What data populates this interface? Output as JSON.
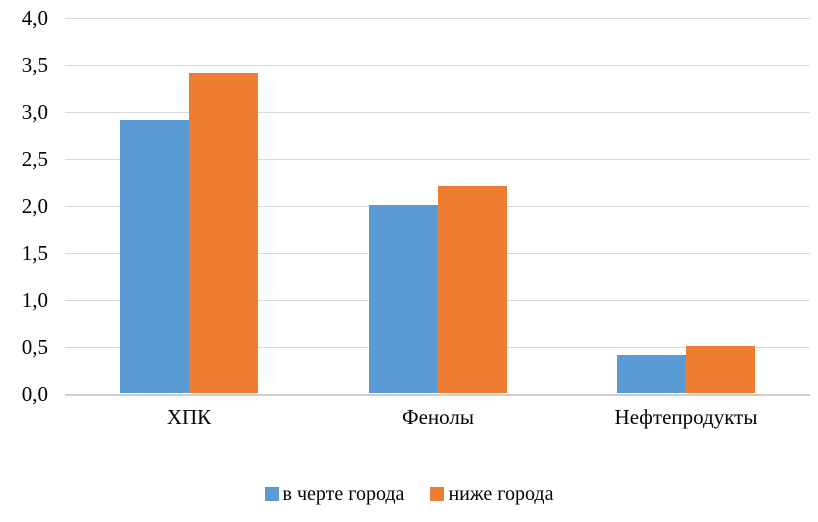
{
  "chart_data": {
    "type": "bar",
    "title": "",
    "xlabel": "",
    "ylabel": "",
    "categories": [
      "ХПК",
      "Фенолы",
      "Нефтепродукты"
    ],
    "series": [
      {
        "name": "в черте города",
        "color": "#5B9BD5",
        "values": [
          2.9,
          2.0,
          0.4
        ]
      },
      {
        "name": "ниже города",
        "color": "#ED7D31",
        "values": [
          3.4,
          2.2,
          0.5
        ]
      }
    ],
    "ylim": [
      0.0,
      4.0
    ],
    "ytick_step": 0.5,
    "ytick_labels": [
      "0,0",
      "0,5",
      "1,0",
      "1,5",
      "2,0",
      "2,5",
      "3,0",
      "3,5",
      "4,0"
    ],
    "grid": true,
    "legend_position": "bottom-center",
    "colors": {
      "gridline": "#D9D9D9",
      "baseline": "#CFCDCD",
      "text": "#000000",
      "background": "#FFFFFF"
    }
  }
}
